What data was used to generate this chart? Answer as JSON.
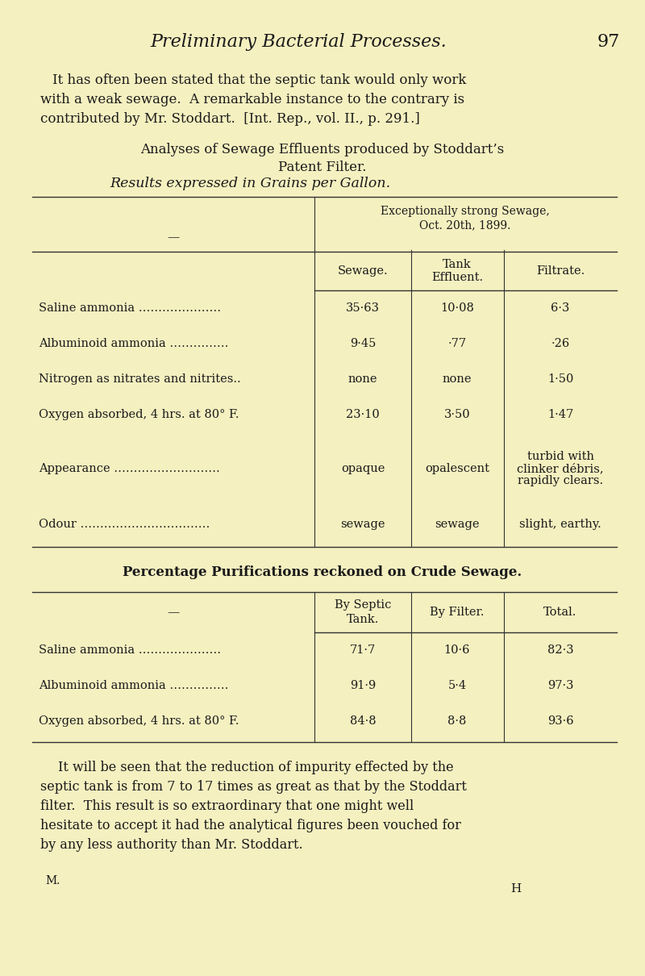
{
  "bg_color": "#f5f0c0",
  "text_color": "#1a1a1a",
  "page_title": "Preliminary Bacterial Processes.",
  "page_number": "97",
  "intro_text": [
    "It has often been stated that the septic tank would only work",
    "with a weak sewage.  A remarkable instance to the contrary is",
    "contributed by Mr. Stoddart.  [Int. Rep., vol. II., p. 291.]"
  ],
  "section_title1": "Analyses of Sewage Effluents produced by Stoddart’s",
  "section_title2": "Patent Filter.",
  "subtitle_italic": "Results expressed in Grains per Gallon.",
  "table1_header_sub_line1": "Exceptionally strong Sewage,",
  "table1_header_sub_line2": "Oct. 20th, 1899.",
  "table1_col_headers": [
    "Sewage.",
    "Tank\nEffluent.",
    "Filtrate."
  ],
  "table1_rows": [
    [
      "Saline ammonia …………………",
      "35·63",
      "10·08",
      "6·3"
    ],
    [
      "Albuminoid ammonia ……………",
      "9·45",
      "·77",
      "·26"
    ],
    [
      "Nitrogen as nitrates and nitrites..",
      "none",
      "none",
      "1·50"
    ],
    [
      "Oxygen absorbed, 4 hrs. at 80° F.",
      "23·10",
      "3·50",
      "1·47"
    ],
    [
      "Appearance ………………………",
      "opaque",
      "opalescent",
      "turbid with\nclinker débris,\nrapidly clears."
    ],
    [
      "Odour ……………………………",
      "sewage",
      "sewage",
      "slight, earthy."
    ]
  ],
  "section_title3": "Percentage Purifications reckoned on Crude Sewage.",
  "table2_col_headers": [
    "By Septic\nTank.",
    "By Filter.",
    "Total."
  ],
  "table2_rows": [
    [
      "Saline ammonia …………………",
      "71·7",
      "10·6",
      "82·3"
    ],
    [
      "Albuminoid ammonia ……………",
      "91·9",
      "5·4",
      "97·3"
    ],
    [
      "Oxygen absorbed, 4 hrs. at 80° F.",
      "84·8",
      "8·8",
      "93·6"
    ]
  ],
  "closing_text": [
    "It will be seen that the reduction of impurity effected by the",
    "septic tank is from 7 to 17 times as great as that by the Stoddart",
    "filter.  This result is so extraordinary that one might well",
    "hesitate to accept it had the analytical figures been vouched for",
    "by any less authority than Mr. Stoddart."
  ],
  "footnote_m": "M.",
  "footnote_h": "H"
}
